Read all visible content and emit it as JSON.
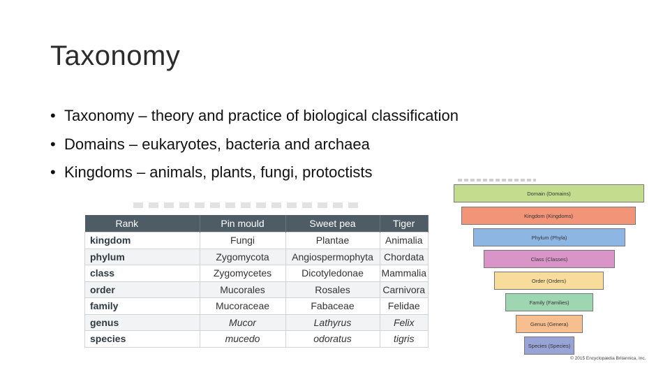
{
  "slide": {
    "title": "Taxonomy",
    "bullets": [
      "Taxonomy – theory and practice of biological classification",
      "Domains – eukaryotes, bacteria and archaea",
      "Kingdoms – animals, plants, fungi, protoctists"
    ]
  },
  "table": {
    "headers": [
      "Rank",
      "Pin mould",
      "Sweet pea",
      "Tiger"
    ],
    "rows": [
      [
        "kingdom",
        "Fungi",
        "Plantae",
        "Animalia"
      ],
      [
        "phylum",
        "Zygomycota",
        "Angiospermophyta",
        "Chordata"
      ],
      [
        "class",
        "Zygomycetes",
        "Dicotyledonae",
        "Mammalia"
      ],
      [
        "order",
        "Mucorales",
        "Rosales",
        "Carnivora"
      ],
      [
        "family",
        "Mucoraceae",
        "Fabaceae",
        "Felidae"
      ],
      [
        "genus",
        "Mucor",
        "Lathyrus",
        "Felix"
      ],
      [
        "species",
        "mucedo",
        "odoratus",
        "tigris"
      ]
    ]
  },
  "pyramid": {
    "levels": [
      {
        "label": "Domain (Domains)",
        "color": "#c3dc8e"
      },
      {
        "label": "Kingdom (Kingdoms)",
        "color": "#f29478"
      },
      {
        "label": "Phylum (Phyla)",
        "color": "#8eb6e3"
      },
      {
        "label": "Class (Classes)",
        "color": "#d995c8"
      },
      {
        "label": "Order (Orders)",
        "color": "#f7dc9c"
      },
      {
        "label": "Family (Families)",
        "color": "#9fd6b2"
      },
      {
        "label": "Genus (Genera)",
        "color": "#f7bf90"
      },
      {
        "label": "Species (Species)",
        "color": "#98a3d6"
      }
    ],
    "copyright": "© 2015 Encyclopædia Britannica, Inc."
  }
}
